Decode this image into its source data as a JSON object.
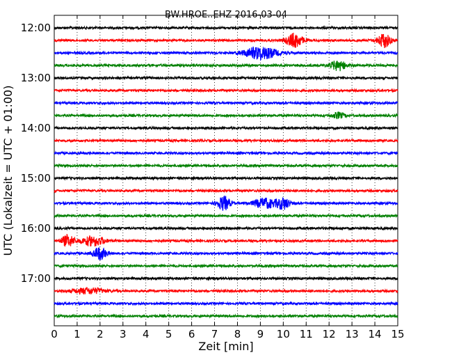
{
  "chart_data": {
    "type": "line",
    "title": "BW.HROE..EHZ 2016-03-04",
    "xlabel": "Zeit  [min]",
    "ylabel": "UTC (Lokalzeit = UTC + 01:00)",
    "xlim": [
      0,
      15
    ],
    "x_ticks": [
      "0",
      "1",
      "2",
      "3",
      "4",
      "5",
      "6",
      "7",
      "8",
      "9",
      "10",
      "11",
      "12",
      "13",
      "14",
      "15"
    ],
    "y_ticks": [
      "12:00",
      "13:00",
      "14:00",
      "15:00",
      "16:00",
      "17:00"
    ],
    "grid": "vertical-dotted",
    "row_interval_min": 15,
    "colors": [
      "#000000",
      "#ff0000",
      "#0000ff",
      "#008000"
    ],
    "series": [
      {
        "start": "12:00",
        "color": "#000000",
        "events": []
      },
      {
        "start": "12:15",
        "color": "#ff0000",
        "events": [
          {
            "t": 10.5,
            "amp": 10,
            "dur": 1.0
          },
          {
            "t": 14.4,
            "amp": 10,
            "dur": 0.8
          }
        ]
      },
      {
        "start": "12:30",
        "color": "#0000ff",
        "events": [
          {
            "t": 9.0,
            "amp": 9,
            "dur": 2.0
          }
        ]
      },
      {
        "start": "12:45",
        "color": "#008000",
        "events": [
          {
            "t": 12.4,
            "amp": 7,
            "dur": 1.0
          }
        ]
      },
      {
        "start": "13:00",
        "color": "#000000",
        "events": []
      },
      {
        "start": "13:15",
        "color": "#ff0000",
        "events": []
      },
      {
        "start": "13:30",
        "color": "#0000ff",
        "events": []
      },
      {
        "start": "13:45",
        "color": "#008000",
        "events": [
          {
            "t": 12.4,
            "amp": 4,
            "dur": 0.8
          }
        ]
      },
      {
        "start": "14:00",
        "color": "#000000",
        "events": []
      },
      {
        "start": "14:15",
        "color": "#ff0000",
        "events": []
      },
      {
        "start": "14:30",
        "color": "#0000ff",
        "events": []
      },
      {
        "start": "14:45",
        "color": "#008000",
        "events": []
      },
      {
        "start": "15:00",
        "color": "#000000",
        "events": []
      },
      {
        "start": "15:15",
        "color": "#ff0000",
        "events": []
      },
      {
        "start": "15:30",
        "color": "#0000ff",
        "events": [
          {
            "t": 7.4,
            "amp": 10,
            "dur": 0.8
          },
          {
            "t": 9.2,
            "amp": 7,
            "dur": 1.4
          },
          {
            "t": 10.0,
            "amp": 8,
            "dur": 0.8
          }
        ]
      },
      {
        "start": "15:45",
        "color": "#008000",
        "events": []
      },
      {
        "start": "16:00",
        "color": "#000000",
        "events": []
      },
      {
        "start": "16:15",
        "color": "#ff0000",
        "events": [
          {
            "t": 0.6,
            "amp": 8,
            "dur": 0.8
          },
          {
            "t": 1.7,
            "amp": 7,
            "dur": 1.4
          }
        ]
      },
      {
        "start": "16:30",
        "color": "#0000ff",
        "events": [
          {
            "t": 2.0,
            "amp": 9,
            "dur": 0.8
          }
        ]
      },
      {
        "start": "16:45",
        "color": "#008000",
        "events": []
      },
      {
        "start": "17:00",
        "color": "#000000",
        "events": []
      },
      {
        "start": "17:15",
        "color": "#ff0000",
        "events": [
          {
            "t": 1.5,
            "amp": 4,
            "dur": 2.0
          }
        ]
      },
      {
        "start": "17:30",
        "color": "#0000ff",
        "events": []
      },
      {
        "start": "17:45",
        "color": "#008000",
        "events": []
      }
    ]
  }
}
